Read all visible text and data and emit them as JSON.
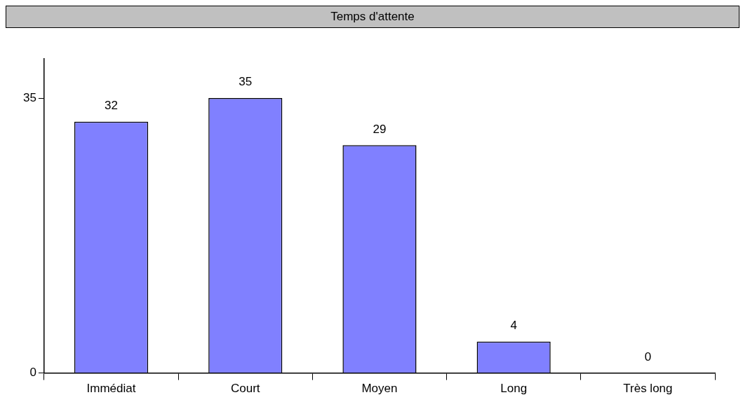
{
  "chart_data": {
    "type": "bar",
    "title": "Temps d'attente",
    "categories": [
      "Immédiat",
      "Court",
      "Moyen",
      "Long",
      "Très long"
    ],
    "values": [
      32,
      35,
      29,
      4,
      0
    ],
    "color": "#8080ff",
    "ylim": [
      0,
      40
    ],
    "yticks": [
      0,
      35
    ],
    "grid": false,
    "legend": false,
    "data_labels": true
  }
}
